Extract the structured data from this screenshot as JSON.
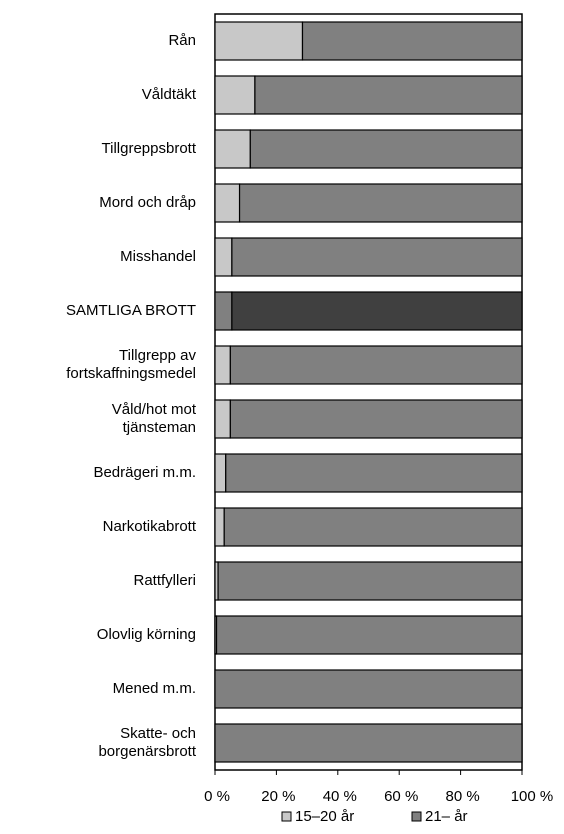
{
  "chart_data": {
    "type": "stacked_barh",
    "categories": [
      "Rån",
      "Våldtäkt",
      "Tillgreppsbrott",
      "Mord och dråp",
      "Misshandel",
      "SAMTLIGA BROTT",
      "Tillgrepp av\nfortskaffningsmedel",
      "Våld/hot mot\ntjänsteman",
      "Bedrägeri m.m.",
      "Narkotikabrott",
      "Rattfylleri",
      "Olovlig körning",
      "Mened m.m.",
      "Skatte- och\nborgenärsbrott"
    ],
    "series": [
      {
        "name": "15–20 år",
        "color": "#c8c8c8",
        "colors": [
          "#c8c8c8",
          "#c8c8c8",
          "#c8c8c8",
          "#c8c8c8",
          "#c8c8c8",
          "#808080",
          "#c8c8c8",
          "#c8c8c8",
          "#c8c8c8",
          "#c8c8c8",
          "#c8c8c8",
          "#c8c8c8",
          "#c8c8c8",
          "#c8c8c8"
        ],
        "values": [
          28.5,
          13,
          11.5,
          8,
          5.5,
          5.5,
          5,
          5,
          3.5,
          3,
          1,
          0.5,
          0,
          0
        ]
      },
      {
        "name": "21– år",
        "color": "#808080",
        "colors": [
          "#808080",
          "#808080",
          "#808080",
          "#808080",
          "#808080",
          "#404040",
          "#808080",
          "#808080",
          "#808080",
          "#808080",
          "#808080",
          "#808080",
          "#808080",
          "#808080"
        ],
        "values": [
          71.5,
          87,
          88.5,
          92,
          94.5,
          94.5,
          95,
          95,
          96.5,
          97,
          99,
          99.5,
          100,
          100
        ]
      }
    ],
    "xlim": [
      0,
      100
    ],
    "xticks": [
      {
        "value": 0,
        "label": "0 %"
      },
      {
        "value": 20,
        "label": "20 %"
      },
      {
        "value": 40,
        "label": "40 %"
      },
      {
        "value": 60,
        "label": "60 %"
      },
      {
        "value": 80,
        "label": "80 %"
      },
      {
        "value": 100,
        "label": "100 %"
      }
    ],
    "legend": "bottom"
  }
}
